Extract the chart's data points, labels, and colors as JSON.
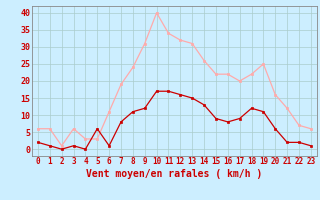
{
  "hours": [
    0,
    1,
    2,
    3,
    4,
    5,
    6,
    7,
    8,
    9,
    10,
    11,
    12,
    13,
    14,
    15,
    16,
    17,
    18,
    19,
    20,
    21,
    22,
    23
  ],
  "mean_wind": [
    2,
    1,
    0,
    1,
    0,
    6,
    1,
    8,
    11,
    12,
    17,
    17,
    16,
    15,
    13,
    9,
    8,
    9,
    12,
    11,
    6,
    2,
    2,
    1
  ],
  "gust_wind": [
    6,
    6,
    1,
    6,
    3,
    3,
    11,
    19,
    24,
    31,
    40,
    34,
    32,
    31,
    26,
    22,
    22,
    20,
    22,
    25,
    16,
    12,
    7,
    6
  ],
  "line_color_mean": "#cc0000",
  "line_color_gust": "#ffaaaa",
  "marker_color_mean": "#cc0000",
  "marker_color_gust": "#ffaaaa",
  "bg_color": "#cceeff",
  "grid_color": "#aacccc",
  "xlabel": "Vent moyen/en rafales ( km/h )",
  "xlabel_color": "#cc0000",
  "xlabel_fontsize": 7,
  "tick_fontsize": 5.5,
  "ytick_fontsize": 6,
  "yticks": [
    0,
    5,
    10,
    15,
    20,
    25,
    30,
    35,
    40
  ],
  "ylim": [
    -2,
    42
  ],
  "xlim": [
    -0.5,
    23.5
  ]
}
